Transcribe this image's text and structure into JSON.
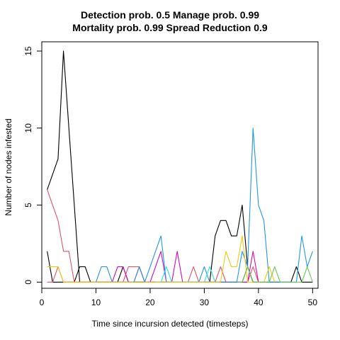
{
  "chart_data": {
    "type": "line",
    "title_line1": "Detection prob. 0.5 Manage prob. 0.99",
    "title_line2": "Mortality prob. 0.99 Spread Reduction 0.9",
    "xlabel": "Time since incursion detected (timesteps)",
    "ylabel": "Number of nodes infested",
    "xlim": [
      0,
      51
    ],
    "ylim": [
      -0.4,
      15.6
    ],
    "x_ticks": [
      0,
      10,
      20,
      30,
      40,
      50
    ],
    "y_ticks": [
      0,
      5,
      10,
      15
    ],
    "grid": false,
    "legend": "none",
    "series": [
      {
        "color": "#000000",
        "points": [
          [
            1,
            2
          ],
          [
            2,
            0
          ],
          [
            3,
            0
          ],
          [
            4,
            0
          ],
          [
            5,
            0
          ],
          [
            6,
            0
          ],
          [
            7,
            1
          ],
          [
            8,
            1
          ],
          [
            9,
            0
          ],
          [
            10,
            0
          ],
          [
            11,
            0
          ],
          [
            12,
            0
          ],
          [
            13,
            0
          ],
          [
            14,
            0
          ],
          [
            15,
            1
          ],
          [
            16,
            0
          ],
          [
            17,
            0
          ],
          [
            18,
            0
          ],
          [
            19,
            0
          ],
          [
            20,
            0
          ],
          [
            21,
            0
          ],
          [
            22,
            0
          ],
          [
            23,
            0
          ],
          [
            24,
            0
          ],
          [
            25,
            0
          ],
          [
            26,
            0
          ],
          [
            27,
            0
          ],
          [
            28,
            0
          ],
          [
            29,
            0
          ],
          [
            30,
            0
          ],
          [
            31,
            0
          ],
          [
            32,
            3
          ],
          [
            33,
            4
          ],
          [
            34,
            4
          ],
          [
            35,
            3
          ],
          [
            36,
            3
          ],
          [
            37,
            5
          ],
          [
            38,
            1
          ],
          [
            39,
            0
          ],
          [
            40,
            0
          ],
          [
            41,
            0
          ],
          [
            42,
            0
          ],
          [
            43,
            0
          ],
          [
            44,
            0
          ],
          [
            45,
            0
          ],
          [
            46,
            0
          ],
          [
            47,
            1
          ],
          [
            48,
            0
          ],
          [
            49,
            0
          ],
          [
            50,
            0
          ]
        ]
      },
      {
        "color": "#000000",
        "points": [
          [
            1,
            6
          ],
          [
            2,
            7
          ],
          [
            3,
            8
          ],
          [
            4,
            15
          ],
          [
            5,
            10
          ],
          [
            6,
            5
          ],
          [
            7,
            0
          ],
          [
            8,
            0
          ],
          [
            9,
            0
          ],
          [
            10,
            0
          ],
          [
            11,
            0
          ],
          [
            12,
            0
          ],
          [
            13,
            0
          ],
          [
            14,
            0
          ],
          [
            15,
            0
          ],
          [
            16,
            0
          ],
          [
            17,
            0
          ],
          [
            18,
            0
          ],
          [
            19,
            0
          ],
          [
            20,
            0
          ],
          [
            21,
            0
          ],
          [
            22,
            0
          ],
          [
            23,
            0
          ],
          [
            24,
            0
          ],
          [
            25,
            0
          ],
          [
            26,
            0
          ],
          [
            27,
            0
          ],
          [
            28,
            0
          ],
          [
            29,
            0
          ],
          [
            30,
            0
          ],
          [
            31,
            0
          ],
          [
            32,
            0
          ],
          [
            33,
            0
          ],
          [
            34,
            0
          ],
          [
            35,
            0
          ],
          [
            36,
            0
          ],
          [
            37,
            0
          ],
          [
            38,
            1
          ],
          [
            39,
            0
          ],
          [
            40,
            0
          ]
        ]
      },
      {
        "color": "#DF536B",
        "points": [
          [
            1,
            6
          ],
          [
            2,
            5
          ],
          [
            3,
            4
          ],
          [
            4,
            2
          ],
          [
            5,
            2
          ],
          [
            6,
            0
          ],
          [
            7,
            0
          ],
          [
            8,
            0
          ],
          [
            9,
            0
          ],
          [
            10,
            0
          ],
          [
            11,
            0
          ],
          [
            12,
            0
          ],
          [
            13,
            0
          ],
          [
            14,
            0
          ],
          [
            15,
            0
          ],
          [
            16,
            1
          ],
          [
            17,
            1
          ],
          [
            18,
            1
          ],
          [
            19,
            0
          ],
          [
            20,
            0
          ],
          [
            21,
            0
          ],
          [
            22,
            0
          ],
          [
            23,
            0
          ],
          [
            24,
            0
          ],
          [
            25,
            0
          ],
          [
            26,
            0
          ],
          [
            27,
            0
          ],
          [
            28,
            1
          ],
          [
            29,
            0
          ],
          [
            30,
            0
          ],
          [
            31,
            0
          ],
          [
            32,
            0
          ],
          [
            33,
            1
          ],
          [
            34,
            0
          ],
          [
            35,
            0
          ],
          [
            36,
            0
          ],
          [
            37,
            0
          ],
          [
            38,
            0
          ],
          [
            39,
            1
          ],
          [
            40,
            0
          ]
        ]
      },
      {
        "color": "#DF536B",
        "points": [
          [
            1,
            0
          ],
          [
            2,
            0
          ],
          [
            3,
            1
          ],
          [
            4,
            0
          ],
          [
            5,
            0
          ],
          [
            6,
            0
          ],
          [
            7,
            0
          ],
          [
            8,
            0
          ],
          [
            9,
            0
          ],
          [
            10,
            0
          ]
        ]
      },
      {
        "color": "#CD0BBC",
        "points": [
          [
            13,
            0
          ],
          [
            14,
            1
          ],
          [
            15,
            1
          ],
          [
            16,
            0
          ],
          [
            17,
            0
          ],
          [
            18,
            1
          ],
          [
            19,
            0
          ],
          [
            20,
            0
          ],
          [
            21,
            1
          ],
          [
            22,
            2
          ],
          [
            23,
            0
          ],
          [
            24,
            0
          ],
          [
            25,
            2
          ],
          [
            26,
            0
          ],
          [
            27,
            0
          ],
          [
            28,
            0
          ],
          [
            29,
            0
          ],
          [
            30,
            0
          ],
          [
            31,
            0
          ],
          [
            32,
            0
          ],
          [
            33,
            0
          ],
          [
            34,
            0
          ],
          [
            35,
            0
          ],
          [
            36,
            0
          ],
          [
            37,
            0
          ],
          [
            38,
            0
          ],
          [
            39,
            2
          ],
          [
            40,
            0
          ]
        ]
      },
      {
        "color": "#2297E6",
        "points": [
          [
            9,
            0
          ],
          [
            10,
            0
          ],
          [
            11,
            1
          ],
          [
            12,
            1
          ],
          [
            13,
            0
          ],
          [
            14,
            0
          ],
          [
            15,
            0
          ],
          [
            16,
            0
          ],
          [
            17,
            0
          ],
          [
            18,
            1
          ],
          [
            19,
            0
          ],
          [
            20,
            1
          ],
          [
            21,
            2
          ],
          [
            22,
            3
          ],
          [
            23,
            0
          ],
          [
            24,
            0
          ],
          [
            25,
            0
          ],
          [
            26,
            0
          ],
          [
            27,
            0
          ],
          [
            28,
            0
          ],
          [
            29,
            0
          ],
          [
            30,
            1
          ],
          [
            31,
            0
          ],
          [
            32,
            0
          ],
          [
            33,
            0
          ],
          [
            34,
            0
          ],
          [
            35,
            0
          ],
          [
            36,
            0
          ],
          [
            37,
            2
          ],
          [
            38,
            1
          ],
          [
            39,
            10
          ],
          [
            40,
            5
          ],
          [
            41,
            4
          ],
          [
            42,
            0
          ],
          [
            43,
            0
          ],
          [
            44,
            0
          ],
          [
            45,
            0
          ],
          [
            46,
            0
          ],
          [
            47,
            0
          ],
          [
            48,
            3
          ],
          [
            49,
            1
          ],
          [
            50,
            2
          ]
        ]
      },
      {
        "color": "#28E2E5",
        "points": [
          [
            21,
            0
          ],
          [
            22,
            0
          ],
          [
            23,
            1
          ],
          [
            24,
            0
          ],
          [
            25,
            0
          ],
          [
            26,
            0
          ],
          [
            27,
            0
          ],
          [
            28,
            0
          ],
          [
            29,
            0
          ],
          [
            30,
            0
          ],
          [
            31,
            1
          ],
          [
            32,
            0
          ]
        ]
      },
      {
        "color": "#F5C710",
        "points": [
          [
            1,
            1
          ],
          [
            2,
            1
          ],
          [
            3,
            1
          ],
          [
            4,
            0
          ],
          [
            5,
            0
          ],
          [
            6,
            0
          ],
          [
            7,
            0
          ],
          [
            8,
            0
          ],
          [
            9,
            0
          ],
          [
            10,
            0
          ],
          [
            11,
            0
          ],
          [
            12,
            0
          ],
          [
            13,
            0
          ],
          [
            14,
            0
          ],
          [
            15,
            0
          ],
          [
            16,
            0
          ],
          [
            17,
            0
          ],
          [
            18,
            0
          ],
          [
            19,
            0
          ],
          [
            20,
            0
          ],
          [
            21,
            0
          ],
          [
            22,
            0
          ],
          [
            23,
            0
          ],
          [
            24,
            0
          ],
          [
            25,
            0
          ],
          [
            26,
            0
          ],
          [
            27,
            0
          ],
          [
            28,
            0
          ],
          [
            29,
            0
          ],
          [
            30,
            0
          ],
          [
            31,
            0
          ],
          [
            32,
            0
          ],
          [
            33,
            0
          ],
          [
            34,
            2
          ],
          [
            35,
            1
          ],
          [
            36,
            1
          ],
          [
            37,
            3
          ],
          [
            38,
            0
          ],
          [
            39,
            0
          ],
          [
            40,
            0
          ],
          [
            41,
            0
          ],
          [
            42,
            1
          ],
          [
            43,
            0
          ]
        ]
      },
      {
        "color": "#61D04F",
        "points": [
          [
            36,
            0
          ],
          [
            37,
            0
          ],
          [
            38,
            1
          ],
          [
            39,
            0
          ],
          [
            40,
            0
          ],
          [
            41,
            0
          ],
          [
            42,
            0
          ],
          [
            43,
            1
          ],
          [
            44,
            0
          ],
          [
            45,
            0
          ],
          [
            46,
            0
          ],
          [
            47,
            0
          ],
          [
            48,
            0
          ],
          [
            49,
            1
          ],
          [
            50,
            0
          ]
        ]
      }
    ]
  }
}
